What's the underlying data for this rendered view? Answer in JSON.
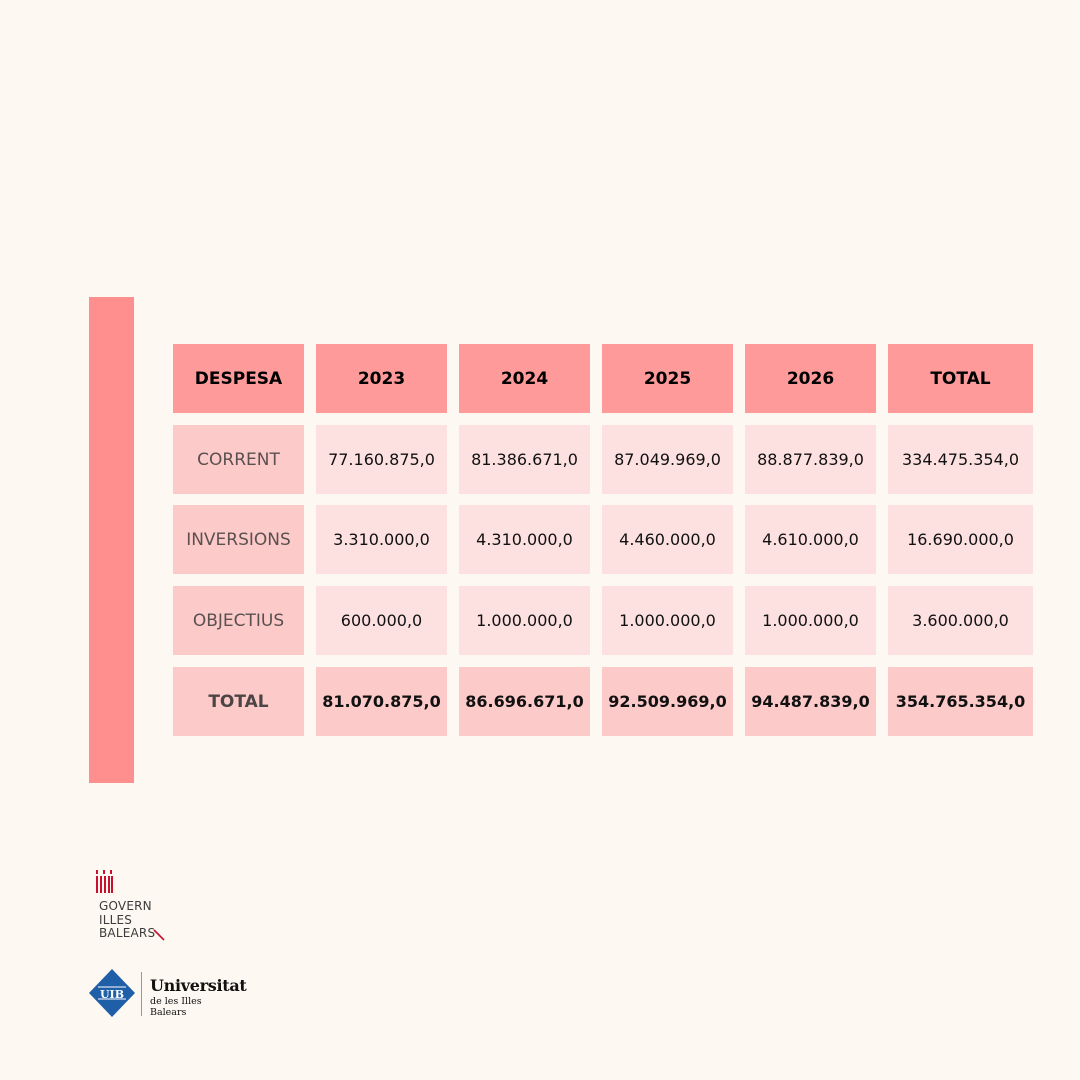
{
  "table": {
    "headers": [
      "DESPESA",
      "2023",
      "2024",
      "2025",
      "2026",
      "TOTAL"
    ],
    "rows": [
      {
        "label": "CORRENT",
        "values": [
          "77.160.875,0",
          "81.386.671,0",
          "87.049.969,0",
          "88.877.839,0",
          "334.475.354,0"
        ]
      },
      {
        "label": "INVERSIONS",
        "values": [
          "3.310.000,0",
          "4.310.000,0",
          "4.460.000,0",
          "4.610.000,0",
          "16.690.000,0"
        ]
      },
      {
        "label": "OBJECTIUS",
        "values": [
          "600.000,0",
          "1.000.000,0",
          "1.000.000,0",
          "1.000.000,0",
          "3.600.000,0"
        ]
      },
      {
        "label": "TOTAL",
        "values": [
          "81.070.875,0",
          "86.696.671,0",
          "92.509.969,0",
          "94.487.839,0",
          "354.765.354,0"
        ]
      }
    ]
  },
  "logos": {
    "govern": {
      "line1": "GOVERN",
      "line2": "ILLES",
      "line3": "BALEARS"
    },
    "uib": {
      "mark": "UIB",
      "name": "Universitat",
      "subtitle": "de les Illes Balears"
    }
  },
  "colors": {
    "background": "#fdf8f1",
    "accent": "#fe8f8e",
    "header_cell": "#fe9a99",
    "label_cell": "#fdcaca",
    "value_cell": "#fde0e0",
    "uib_blue": "#1f5fa8",
    "govern_red": "#c8102e"
  }
}
